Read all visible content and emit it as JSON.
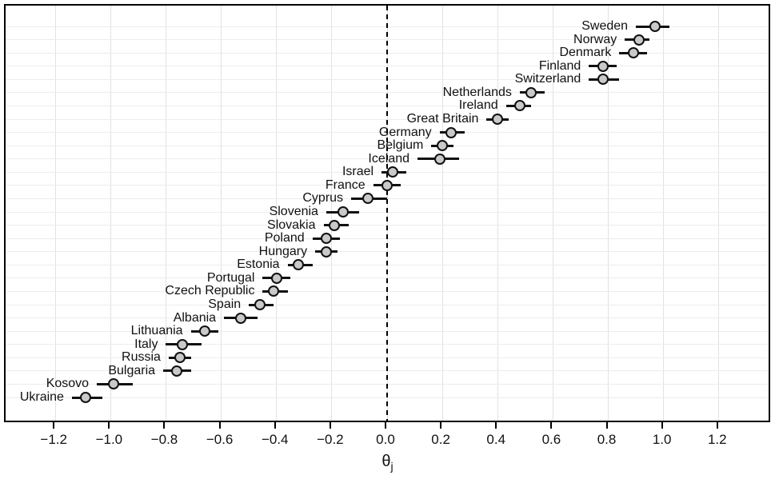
{
  "figure": {
    "xlabel_base": "θ",
    "xlabel_sub": "j",
    "colors": {
      "background": "#ffffff",
      "plot_border": "#000000",
      "h_gridline": "#ececec",
      "v_gridline": "#e2e2e2",
      "reference_line": "#000000",
      "ci_line": "#111111",
      "dot_fill": "#c9c9c9",
      "dot_stroke": "#111111",
      "text": "#111111"
    }
  },
  "chart_data": {
    "type": "scatter",
    "subtype": "dot-plot-with-95ci-error-bars",
    "title": "",
    "xlabel": "θj",
    "ylabel": "",
    "xlim": [
      -1.38,
      1.38
    ],
    "x_ticks": [
      -1.2,
      -1.0,
      -0.8,
      -0.6,
      -0.4,
      -0.2,
      0.0,
      0.2,
      0.4,
      0.6,
      0.8,
      1.0,
      1.2
    ],
    "x_tick_labels": [
      "−1.2",
      "−1.0",
      "−0.8",
      "−0.6",
      "−0.4",
      "−0.2",
      "0.0",
      "0.2",
      "0.4",
      "0.6",
      "0.8",
      "1.0",
      "1.2"
    ],
    "reference_line_x": 0,
    "grid": true,
    "legend": false,
    "points": [
      {
        "label": "Sweden",
        "est": 0.97,
        "lo": 0.9,
        "hi": 1.02
      },
      {
        "label": "Norway",
        "est": 0.91,
        "lo": 0.86,
        "hi": 0.95
      },
      {
        "label": "Denmark",
        "est": 0.89,
        "lo": 0.84,
        "hi": 0.94
      },
      {
        "label": "Finland",
        "est": 0.78,
        "lo": 0.73,
        "hi": 0.83
      },
      {
        "label": "Switzerland",
        "est": 0.78,
        "lo": 0.73,
        "hi": 0.84
      },
      {
        "label": "Netherlands",
        "est": 0.52,
        "lo": 0.48,
        "hi": 0.57
      },
      {
        "label": "Ireland",
        "est": 0.48,
        "lo": 0.43,
        "hi": 0.52
      },
      {
        "label": "Great Britain",
        "est": 0.4,
        "lo": 0.36,
        "hi": 0.44
      },
      {
        "label": "Germany",
        "est": 0.23,
        "lo": 0.19,
        "hi": 0.28
      },
      {
        "label": "Belgium",
        "est": 0.2,
        "lo": 0.16,
        "hi": 0.24
      },
      {
        "label": "Iceland",
        "est": 0.19,
        "lo": 0.11,
        "hi": 0.26
      },
      {
        "label": "Israel",
        "est": 0.02,
        "lo": -0.02,
        "hi": 0.07
      },
      {
        "label": "France",
        "est": 0.0,
        "lo": -0.05,
        "hi": 0.05
      },
      {
        "label": "Cyprus",
        "est": -0.07,
        "lo": -0.13,
        "hi": 0.0
      },
      {
        "label": "Slovenia",
        "est": -0.16,
        "lo": -0.22,
        "hi": -0.1
      },
      {
        "label": "Slovakia",
        "est": -0.19,
        "lo": -0.23,
        "hi": -0.14
      },
      {
        "label": "Poland",
        "est": -0.22,
        "lo": -0.27,
        "hi": -0.17
      },
      {
        "label": "Hungary",
        "est": -0.22,
        "lo": -0.26,
        "hi": -0.18
      },
      {
        "label": "Estonia",
        "est": -0.32,
        "lo": -0.36,
        "hi": -0.27
      },
      {
        "label": "Portugal",
        "est": -0.4,
        "lo": -0.45,
        "hi": -0.35
      },
      {
        "label": "Czech Republic",
        "est": -0.41,
        "lo": -0.45,
        "hi": -0.36
      },
      {
        "label": "Spain",
        "est": -0.46,
        "lo": -0.5,
        "hi": -0.41
      },
      {
        "label": "Albania",
        "est": -0.53,
        "lo": -0.59,
        "hi": -0.47
      },
      {
        "label": "Lithuania",
        "est": -0.66,
        "lo": -0.71,
        "hi": -0.61
      },
      {
        "label": "Italy",
        "est": -0.74,
        "lo": -0.8,
        "hi": -0.67
      },
      {
        "label": "Russia",
        "est": -0.75,
        "lo": -0.79,
        "hi": -0.71
      },
      {
        "label": "Bulgaria",
        "est": -0.76,
        "lo": -0.81,
        "hi": -0.71
      },
      {
        "label": "Kosovo",
        "est": -0.99,
        "lo": -1.05,
        "hi": -0.92
      },
      {
        "label": "Ukraine",
        "est": -1.09,
        "lo": -1.14,
        "hi": -1.03
      }
    ]
  }
}
